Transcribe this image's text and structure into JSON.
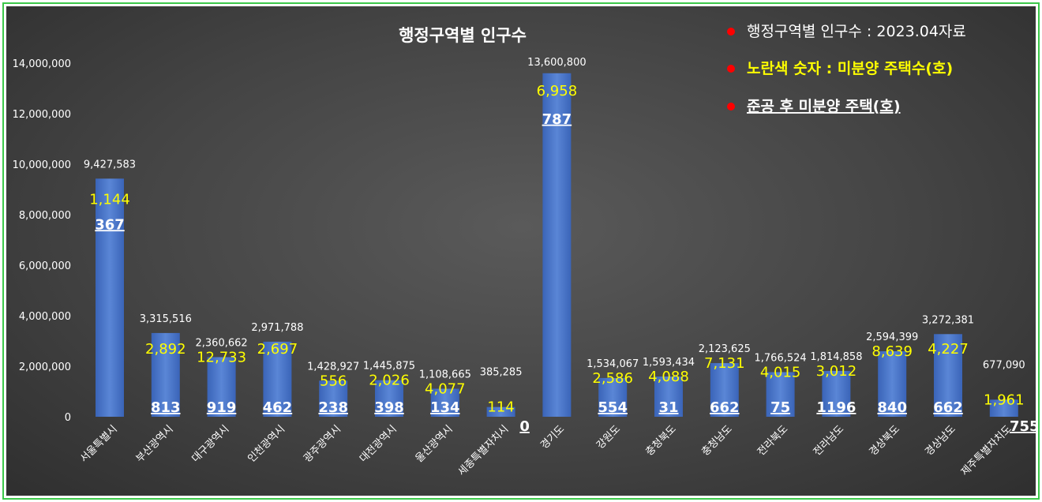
{
  "chart_data": {
    "type": "bar",
    "title": "행정구역별 인구수",
    "ylim": [
      0,
      14000000
    ],
    "yticks": [
      "0",
      "2,000,000",
      "4,000,000",
      "6,000,000",
      "8,000,000",
      "10,000,000",
      "12,000,000",
      "14,000,000"
    ],
    "categories": [
      "서울특별시",
      "부산광역시",
      "대구광역시",
      "인천광역시",
      "광주광역시",
      "대전광역시",
      "울산광역시",
      "세종특별자치시",
      "경기도",
      "강원도",
      "충청북도",
      "충청남도",
      "전라북도",
      "전라남도",
      "경상북도",
      "경상남도",
      "제주특별자치도"
    ],
    "values": [
      9427583,
      3315516,
      2360662,
      2971788,
      1428927,
      1445875,
      1108665,
      385285,
      13600800,
      1534067,
      1593434,
      2123625,
      1766524,
      1814858,
      2594399,
      3272381,
      677090
    ],
    "value_labels": [
      "9,427,583",
      "3,315,516",
      "2,360,662",
      "2,971,788",
      "1,428,927",
      "1,445,875",
      "1,108,665",
      "385,285",
      "13,600,800",
      "1,534,067",
      "1,593,434",
      "2,123,625",
      "1,766,524",
      "1,814,858",
      "2,594,399",
      "3,272,381",
      "677,090"
    ],
    "unsold_housing": [
      "1,144",
      "2,892",
      "12,733",
      "2,697",
      "556",
      "2,026",
      "4,077",
      "114",
      "6,958",
      "2,586",
      "4,088",
      "7,131",
      "4,015",
      "3,012",
      "8,639",
      "4,227",
      "1,961"
    ],
    "unsold_after_completion": [
      "367",
      "813",
      "919",
      "462",
      "238",
      "398",
      "134",
      "0",
      "787",
      "554",
      "31",
      "662",
      "75",
      "1196",
      "840",
      "662",
      "755"
    ],
    "legend": [
      {
        "text": "행정구역별 인구수 : 2023.04자료",
        "color": "#ffffff"
      },
      {
        "text": "노란색 숫자 : 미분양 주택수(호)",
        "color": "#ffff00"
      },
      {
        "text": "준공 후 미분양 주택(호)",
        "color": "#ffffff"
      }
    ],
    "colors": {
      "bar": "#4472c4",
      "yellow": "#ffff00",
      "marker": "#ff0000"
    },
    "legend_position": "top-right",
    "grid": false
  }
}
